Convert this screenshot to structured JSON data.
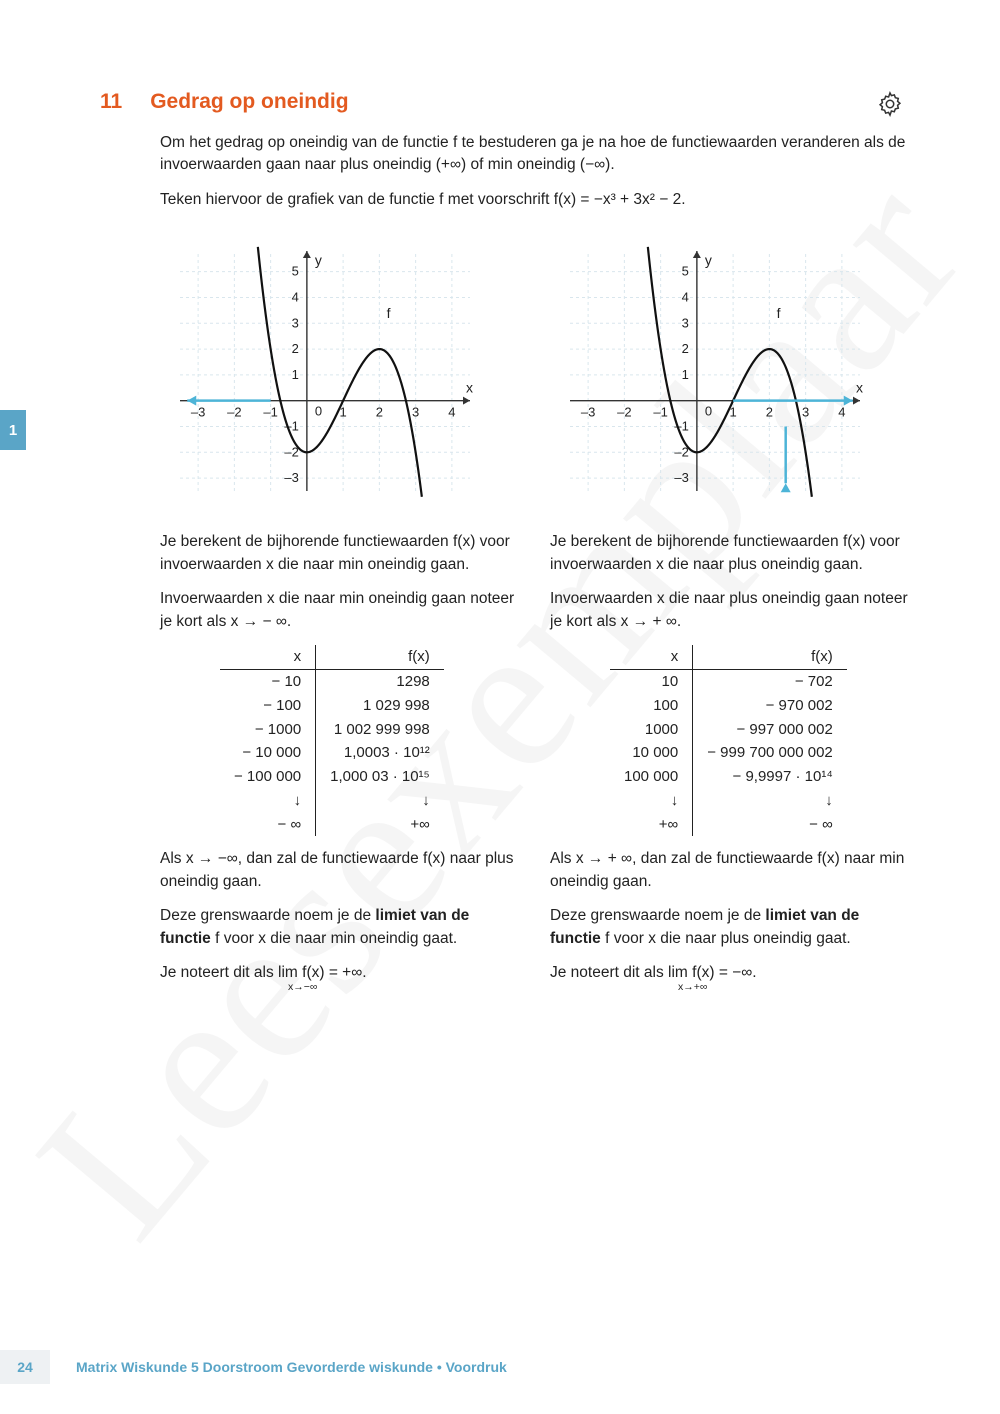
{
  "watermark": "Leesexemplaar",
  "side_tab": "1",
  "section": {
    "num": "11",
    "title": "Gedrag op oneindig"
  },
  "intro": {
    "p1": "Om het gedrag op oneindig van de functie f te bestuderen ga je na hoe de functiewaarden veranderen als de invoerwaarden gaan naar plus oneindig (+∞) of min oneindig (−∞).",
    "p2": "Teken hiervoor de grafiek van de functie f met voorschrift f(x) = −x³ + 3x² − 2."
  },
  "graph": {
    "xmin": -3.5,
    "xmax": 4.5,
    "ymin": -3.5,
    "ymax": 5.8,
    "xticks": [
      -3,
      -2,
      -1,
      0,
      1,
      2,
      3,
      4
    ],
    "yticks": [
      -3,
      -2,
      -1,
      1,
      2,
      3,
      4,
      5
    ],
    "grid_color": "#d9e6ed",
    "axis_color": "#333",
    "curve_color": "#111",
    "arrow_color": "#4db4d7",
    "label_f": "f",
    "label_x": "x",
    "label_y": "y"
  },
  "left": {
    "p1": "Je berekent de bijhorende functiewaarden f(x) voor invoerwaarden x die naar min oneindig gaan.",
    "p2": "Invoerwaarden x die naar min oneindig gaan noteer je kort als x → − ∞.",
    "table": {
      "head_x": "x",
      "head_fx": "f(x)",
      "rows": [
        [
          "− 10",
          "1298"
        ],
        [
          "− 100",
          "1 029 998"
        ],
        [
          "− 1000",
          "1 002 999 998"
        ],
        [
          "− 10 000",
          "1,0003 · 10¹²"
        ],
        [
          "− 100 000",
          "1,000 03 · 10¹⁵"
        ],
        [
          "↓",
          "↓"
        ],
        [
          "− ∞",
          "+∞"
        ]
      ]
    },
    "p3": "Als x → −∞, dan zal de functiewaarde f(x) naar plus oneindig gaan.",
    "p4a": "Deze grenswaarde noem je de ",
    "p4b": "limiet van de functie",
    "p4c": " f voor x die naar min oneindig gaat.",
    "p5": "Je noteert dit als  lim  f(x) = +∞.",
    "p5sub": "x→−∞"
  },
  "right": {
    "p1": "Je berekent de bijhorende functiewaarden f(x) voor invoerwaarden x die naar plus oneindig gaan.",
    "p2": "Invoerwaarden x die naar plus oneindig gaan noteer je kort als x → + ∞.",
    "table": {
      "head_x": "x",
      "head_fx": "f(x)",
      "rows": [
        [
          "10",
          "− 702"
        ],
        [
          "100",
          "− 970 002"
        ],
        [
          "1000",
          "− 997 000 002"
        ],
        [
          "10 000",
          "− 999 700 000 002"
        ],
        [
          "100 000",
          "− 9,9997 · 10¹⁴"
        ],
        [
          "↓",
          "↓"
        ],
        [
          "+∞",
          "− ∞"
        ]
      ]
    },
    "p3": "Als x → + ∞, dan zal de functiewaarde f(x) naar min oneindig gaan.",
    "p4a": "Deze grenswaarde noem je de ",
    "p4b": "limiet van de functie",
    "p4c": " f voor x die naar plus oneindig gaat.",
    "p5": "Je noteert dit als  lim  f(x) = −∞.",
    "p5sub": "x→+∞"
  },
  "footer": {
    "page": "24",
    "text": "Matrix Wiskunde 5 Doorstroom Gevorderde wiskunde • Voordruk"
  }
}
